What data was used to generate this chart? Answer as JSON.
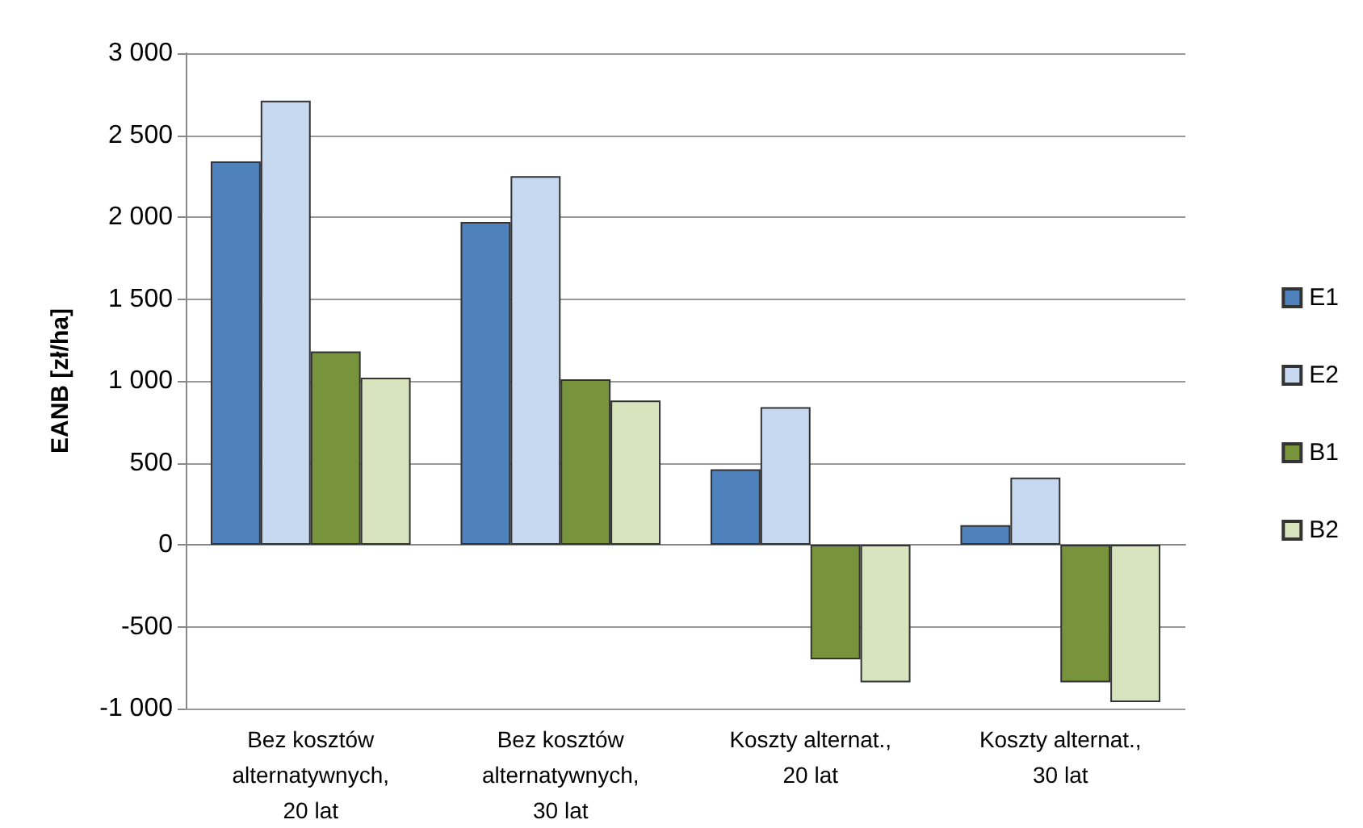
{
  "chart_data": {
    "type": "bar",
    "ylabel": "EANB [zł/ha]",
    "categories": [
      "Bez kosztów\nalternatywnych,\n20 lat",
      "Bez kosztów\nalternatywnych,\n30 lat",
      "Koszty alternat.,\n20 lat",
      "Koszty alternat.,\n30 lat"
    ],
    "series": [
      {
        "name": "E1",
        "color": "#4f81bd",
        "values": [
          2340,
          1970,
          460,
          120
        ]
      },
      {
        "name": "E2",
        "color": "#c6d9f1",
        "values": [
          2710,
          2250,
          840,
          410
        ]
      },
      {
        "name": "B1",
        "color": "#77933c",
        "values": [
          1180,
          1010,
          -700,
          -840
        ]
      },
      {
        "name": "B2",
        "color": "#d7e4bd",
        "values": [
          1020,
          880,
          -840,
          -960
        ]
      }
    ],
    "ylim": [
      -1000,
      3000
    ],
    "yticks": [
      {
        "value": -1000,
        "label": "-1 000"
      },
      -500,
      0,
      500,
      {
        "value": 1000,
        "label": "1 000"
      },
      {
        "value": 1500,
        "label": "1 500"
      },
      {
        "value": 2000,
        "label": "2 000"
      },
      {
        "value": 2500,
        "label": "2 500"
      },
      {
        "value": 3000,
        "label": "3 000"
      }
    ],
    "grid": "y",
    "legend": "right"
  }
}
